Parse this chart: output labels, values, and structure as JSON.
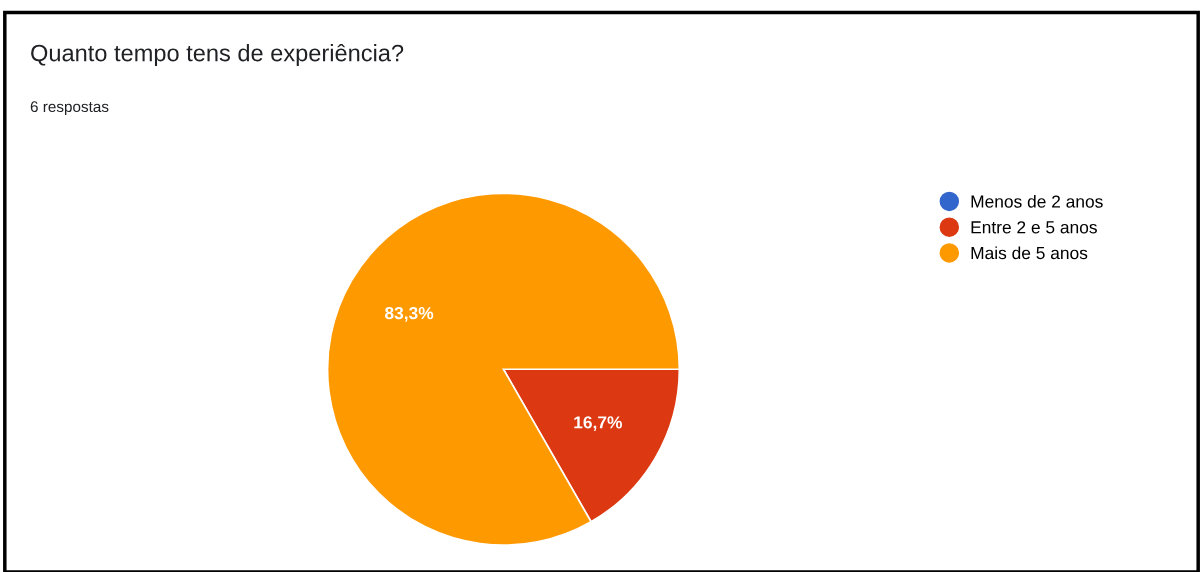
{
  "chart_data": {
    "type": "pie",
    "title": "Quanto tempo tens de experiência?",
    "subtitle": "6 respostas",
    "categories": [
      "Menos de 2 anos",
      "Entre 2 e 5 anos",
      "Mais de 5 anos"
    ],
    "values": [
      0,
      16.7,
      83.3
    ],
    "colors": [
      "#3366cc",
      "#dc3912",
      "#ff9900"
    ],
    "value_labels": [
      null,
      "16,7%",
      "83,3%"
    ],
    "legend": "right"
  }
}
